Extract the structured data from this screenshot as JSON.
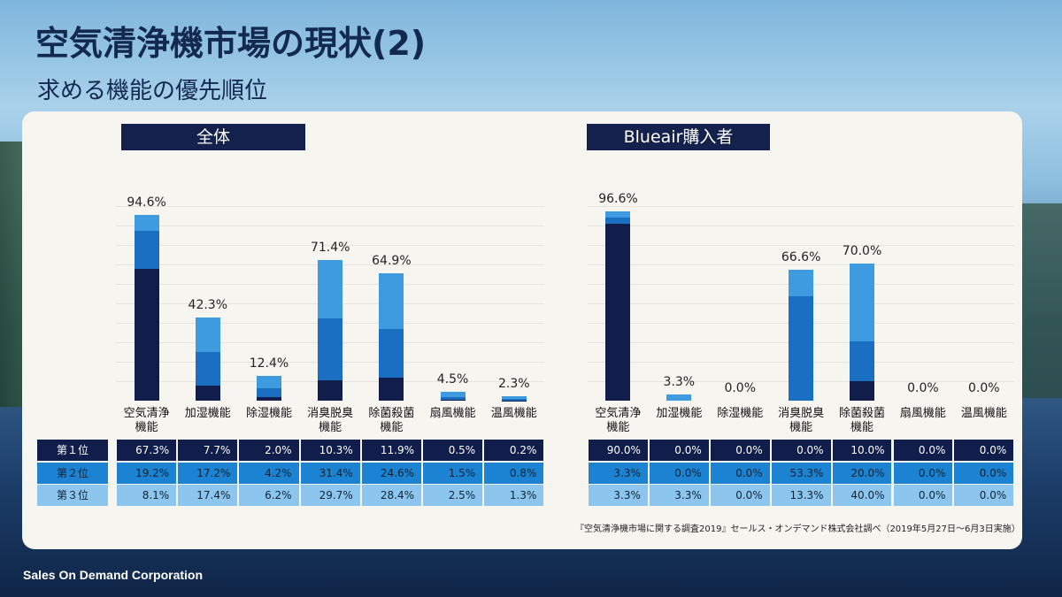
{
  "title": "空気清浄機市場の現状(2)",
  "subtitle": "求める機能の優先順位",
  "rank_labels": [
    "第１位",
    "第２位",
    "第３位"
  ],
  "colors": {
    "rank1": "#111d4a",
    "rank2": "#1b6fc2",
    "rank3": "#3f9be0"
  },
  "source": "『空気清浄機市場に関する調査2019』セールス・オンデマンド株式会社調べ（2019年5月27日〜6月3日実施）",
  "footer": "Sales On Demand Corporation",
  "chart_data": [
    {
      "type": "bar",
      "stacked": true,
      "title": "全体",
      "categories": [
        "空気清浄\n機能",
        "加湿機能",
        "除湿機能",
        "消臭脱臭\n機能",
        "除菌殺菌\n機能",
        "扇風機能",
        "温風機能"
      ],
      "totals": [
        "94.6%",
        "42.3%",
        "12.4%",
        "71.4%",
        "64.9%",
        "4.5%",
        "2.3%"
      ],
      "series": [
        {
          "name": "第１位",
          "values": [
            67.3,
            7.7,
            2.0,
            10.3,
            11.9,
            0.5,
            0.2
          ]
        },
        {
          "name": "第２位",
          "values": [
            19.2,
            17.2,
            4.2,
            31.4,
            24.6,
            1.5,
            0.8
          ]
        },
        {
          "name": "第３位",
          "values": [
            8.1,
            17.4,
            6.2,
            29.7,
            28.4,
            2.5,
            1.3
          ]
        }
      ],
      "ylim": [
        0,
        100
      ]
    },
    {
      "type": "bar",
      "stacked": true,
      "title": "Blueair購入者",
      "categories": [
        "空気清浄\n機能",
        "加湿機能",
        "除湿機能",
        "消臭脱臭\n機能",
        "除菌殺菌\n機能",
        "扇風機能",
        "温風機能"
      ],
      "totals": [
        "96.6%",
        "3.3%",
        "0.0%",
        "66.6%",
        "70.0%",
        "0.0%",
        "0.0%"
      ],
      "series": [
        {
          "name": "第１位",
          "values": [
            90.0,
            0.0,
            0.0,
            0.0,
            10.0,
            0.0,
            0.0
          ]
        },
        {
          "name": "第２位",
          "values": [
            3.3,
            0.0,
            0.0,
            53.3,
            20.0,
            0.0,
            0.0
          ]
        },
        {
          "name": "第３位",
          "values": [
            3.3,
            3.3,
            0.0,
            13.3,
            40.0,
            0.0,
            0.0
          ]
        }
      ],
      "ylim": [
        0,
        100
      ]
    }
  ]
}
